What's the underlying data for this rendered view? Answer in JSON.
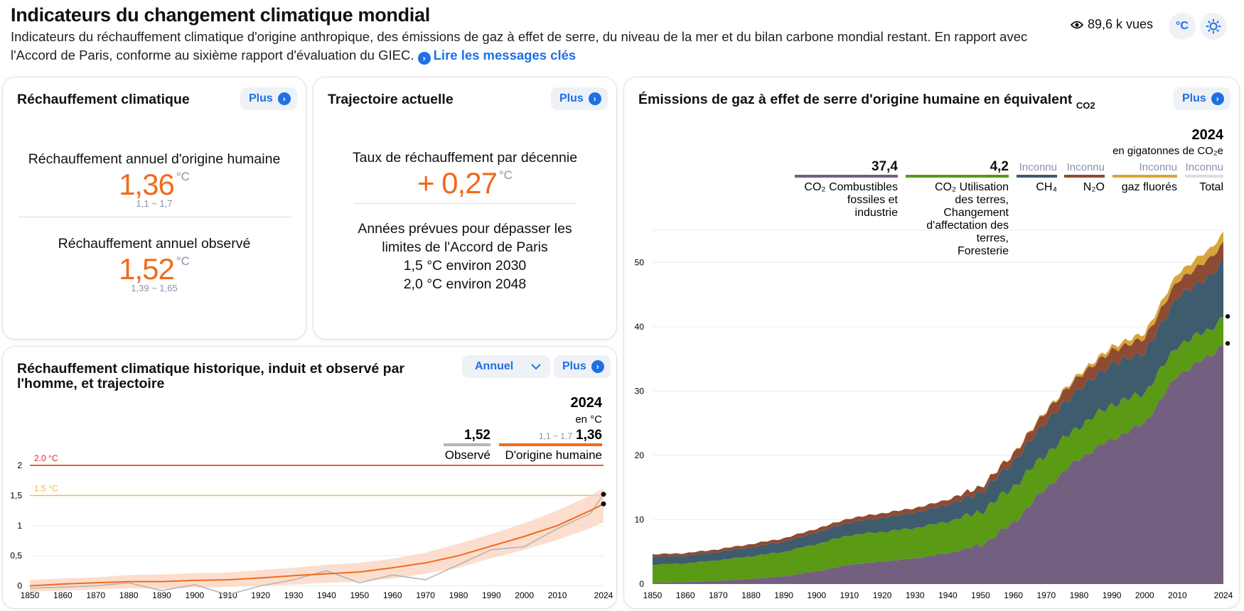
{
  "header": {
    "title": "Indicateurs du changement climatique mondial",
    "description": "Indicateurs du réchauffement climatique d'origine anthropique, des émissions de gaz à effet de serre, du niveau de la mer et du bilan carbone mondial restant. En rapport avec l'Accord de Paris, conforme au sixième rapport d'évaluation du GIEC.",
    "link_label": "Lire les messages clés",
    "views": "89,6 k vues",
    "unit_button": "°C"
  },
  "warming": {
    "title": "Réchauffement climatique",
    "more": "Plus",
    "human_label": "Réchauffement annuel d'origine humaine",
    "human_value": "1,36",
    "unit": "°C",
    "human_range": "1,1 ~ 1,7",
    "observed_label": "Réchauffement annuel observé",
    "observed_value": "1,52",
    "observed_range": "1,39 ~ 1,65"
  },
  "trajectory": {
    "title": "Trajectoire actuelle",
    "more": "Plus",
    "rate_label": "Taux de réchauffement par décennie",
    "rate_value": "+ 0,27",
    "unit": "°C",
    "paris_label": "Années prévues pour dépasser les limites de l'Accord de Paris",
    "limit_15": "1,5 °C environ 2030",
    "limit_20": "2,0 °C environ 2048"
  },
  "history": {
    "title": "Réchauffement climatique historique, induit et observé par l'homme, et trajectoire",
    "dropdown": "Annuel",
    "more": "Plus",
    "year": "2024",
    "unit_text": "en  °C",
    "legend": [
      {
        "label": "Observé",
        "value": "1,52",
        "range": "",
        "color": "#b5b5b5"
      },
      {
        "label": "D'origine humaine",
        "value": "1,36",
        "range": "1,1 ~ 1,7",
        "color": "#f26a1b"
      }
    ],
    "ref_20": "2.0 °C",
    "ref_15": "1.5 °C"
  },
  "emissions": {
    "title": "Émissions de gaz à effet de serre d'origine humaine en équivalent",
    "title_sub": "CO2",
    "more": "Plus",
    "year": "2024",
    "unit_text": "en  gigatonnes de CO₂e",
    "legend": [
      {
        "value": "37,4",
        "label": "CO₂ Combustibles fossiles et industrie",
        "color": "#735f7f"
      },
      {
        "value": "4,2",
        "label": "CO₂ Utilisation des terres, Changement d'affectation des terres, Foresterie",
        "color": "#5a9a14"
      },
      {
        "value": "Inconnu",
        "label": "CH₄",
        "color": "#3f5b6e"
      },
      {
        "value": "Inconnu",
        "label": "N₂O",
        "color": "#8e4b33"
      },
      {
        "value": "Inconnu",
        "label": "gaz fluorés",
        "color": "#d7a53a"
      },
      {
        "value": "Inconnu",
        "label": "Total",
        "color": "#dcdce3"
      }
    ]
  },
  "colors": {
    "accent": "#1f6fe5",
    "orange": "#f26a1b",
    "red": "#e0241b",
    "amber": "#f3b63c"
  },
  "chart_data": [
    {
      "type": "line",
      "title": "Réchauffement climatique historique, induit et observé par l'homme, et trajectoire",
      "xlim": [
        1850,
        2024
      ],
      "ylim": [
        -0.3,
        2
      ],
      "yticks": [
        "0",
        "0,5",
        "1",
        "1,5",
        "2"
      ],
      "xticks": [
        "1850",
        "1860",
        "1870",
        "1880",
        "1890",
        "1900",
        "1910",
        "1920",
        "1930",
        "1940",
        "1950",
        "1960",
        "1970",
        "1980",
        "1990",
        "2000",
        "2010",
        "2024"
      ],
      "reference_lines": [
        {
          "label": "2.0 °C",
          "value": 2.0
        },
        {
          "label": "1.5 °C",
          "value": 1.5
        }
      ],
      "x": [
        1850,
        1860,
        1870,
        1880,
        1890,
        1900,
        1910,
        1920,
        1930,
        1940,
        1950,
        1960,
        1970,
        1980,
        1990,
        2000,
        2010,
        2020,
        2024
      ],
      "series": [
        {
          "name": "D'origine humaine",
          "values": [
            0.0,
            0.03,
            0.05,
            0.07,
            0.07,
            0.09,
            0.1,
            0.13,
            0.17,
            0.2,
            0.23,
            0.3,
            0.38,
            0.5,
            0.66,
            0.82,
            1.0,
            1.25,
            1.36
          ],
          "range_low": [
            -0.1,
            -0.08,
            -0.06,
            -0.04,
            -0.05,
            -0.03,
            -0.02,
            0.0,
            0.02,
            0.05,
            0.07,
            0.12,
            0.2,
            0.3,
            0.46,
            0.6,
            0.76,
            0.96,
            1.06
          ],
          "range_high": [
            0.1,
            0.12,
            0.14,
            0.18,
            0.19,
            0.21,
            0.22,
            0.26,
            0.3,
            0.35,
            0.38,
            0.45,
            0.55,
            0.7,
            0.86,
            1.04,
            1.25,
            1.5,
            1.62
          ]
        },
        {
          "name": "Observé",
          "values": [
            -0.04,
            -0.02,
            0.0,
            0.05,
            -0.08,
            0.02,
            -0.15,
            0.0,
            0.1,
            0.25,
            0.05,
            0.18,
            0.1,
            0.35,
            0.6,
            0.65,
            0.95,
            1.2,
            1.52
          ]
        }
      ]
    },
    {
      "type": "area",
      "title": "Émissions de gaz à effet de serre d'origine humaine en équivalent CO2",
      "xlim": [
        1850,
        2024
      ],
      "ylim": [
        0,
        55
      ],
      "yticks": [
        "0",
        "10",
        "20",
        "30",
        "40",
        "50"
      ],
      "xticks": [
        "1850",
        "1860",
        "1870",
        "1880",
        "1890",
        "1900",
        "1910",
        "1920",
        "1930",
        "1940",
        "1950",
        "1960",
        "1970",
        "1980",
        "1990",
        "2000",
        "2010",
        "2024"
      ],
      "x": [
        1850,
        1860,
        1870,
        1880,
        1890,
        1900,
        1910,
        1920,
        1930,
        1940,
        1950,
        1960,
        1970,
        1980,
        1990,
        2000,
        2010,
        2020,
        2024
      ],
      "series": [
        {
          "name": "CO₂ Combustibles fossiles et industrie",
          "values": [
            0.2,
            0.3,
            0.5,
            0.8,
            1.2,
            2.0,
            3.0,
            3.5,
            4.0,
            4.8,
            6.0,
            9.5,
            15.0,
            19.5,
            22.5,
            25.0,
            32.5,
            35.5,
            37.4
          ]
        },
        {
          "name": "CO₂ Utilisation des terres, Changement d'affectation des terres, Foresterie",
          "values": [
            2.8,
            2.9,
            3.2,
            3.5,
            3.8,
            4.2,
            4.6,
            4.6,
            4.7,
            4.9,
            5.2,
            5.6,
            5.3,
            5.0,
            5.4,
            4.7,
            4.6,
            4.1,
            4.2
          ]
        },
        {
          "name": "CH₄",
          "values": [
            1.2,
            1.2,
            1.3,
            1.4,
            1.6,
            1.8,
            2.0,
            2.2,
            2.4,
            2.6,
            3.0,
            3.9,
            5.0,
            5.8,
            6.3,
            6.3,
            7.5,
            8.3,
            8.6
          ]
        },
        {
          "name": "N₂O",
          "values": [
            0.4,
            0.4,
            0.4,
            0.5,
            0.5,
            0.6,
            0.6,
            0.7,
            0.7,
            0.8,
            0.9,
            1.2,
            1.6,
            2.0,
            2.1,
            2.2,
            2.5,
            2.7,
            2.8
          ]
        },
        {
          "name": "gaz fluorés",
          "values": [
            0,
            0,
            0,
            0,
            0,
            0,
            0,
            0,
            0,
            0,
            0,
            0.1,
            0.2,
            0.4,
            0.6,
            0.8,
            1.2,
            1.5,
            1.6
          ]
        }
      ]
    }
  ]
}
